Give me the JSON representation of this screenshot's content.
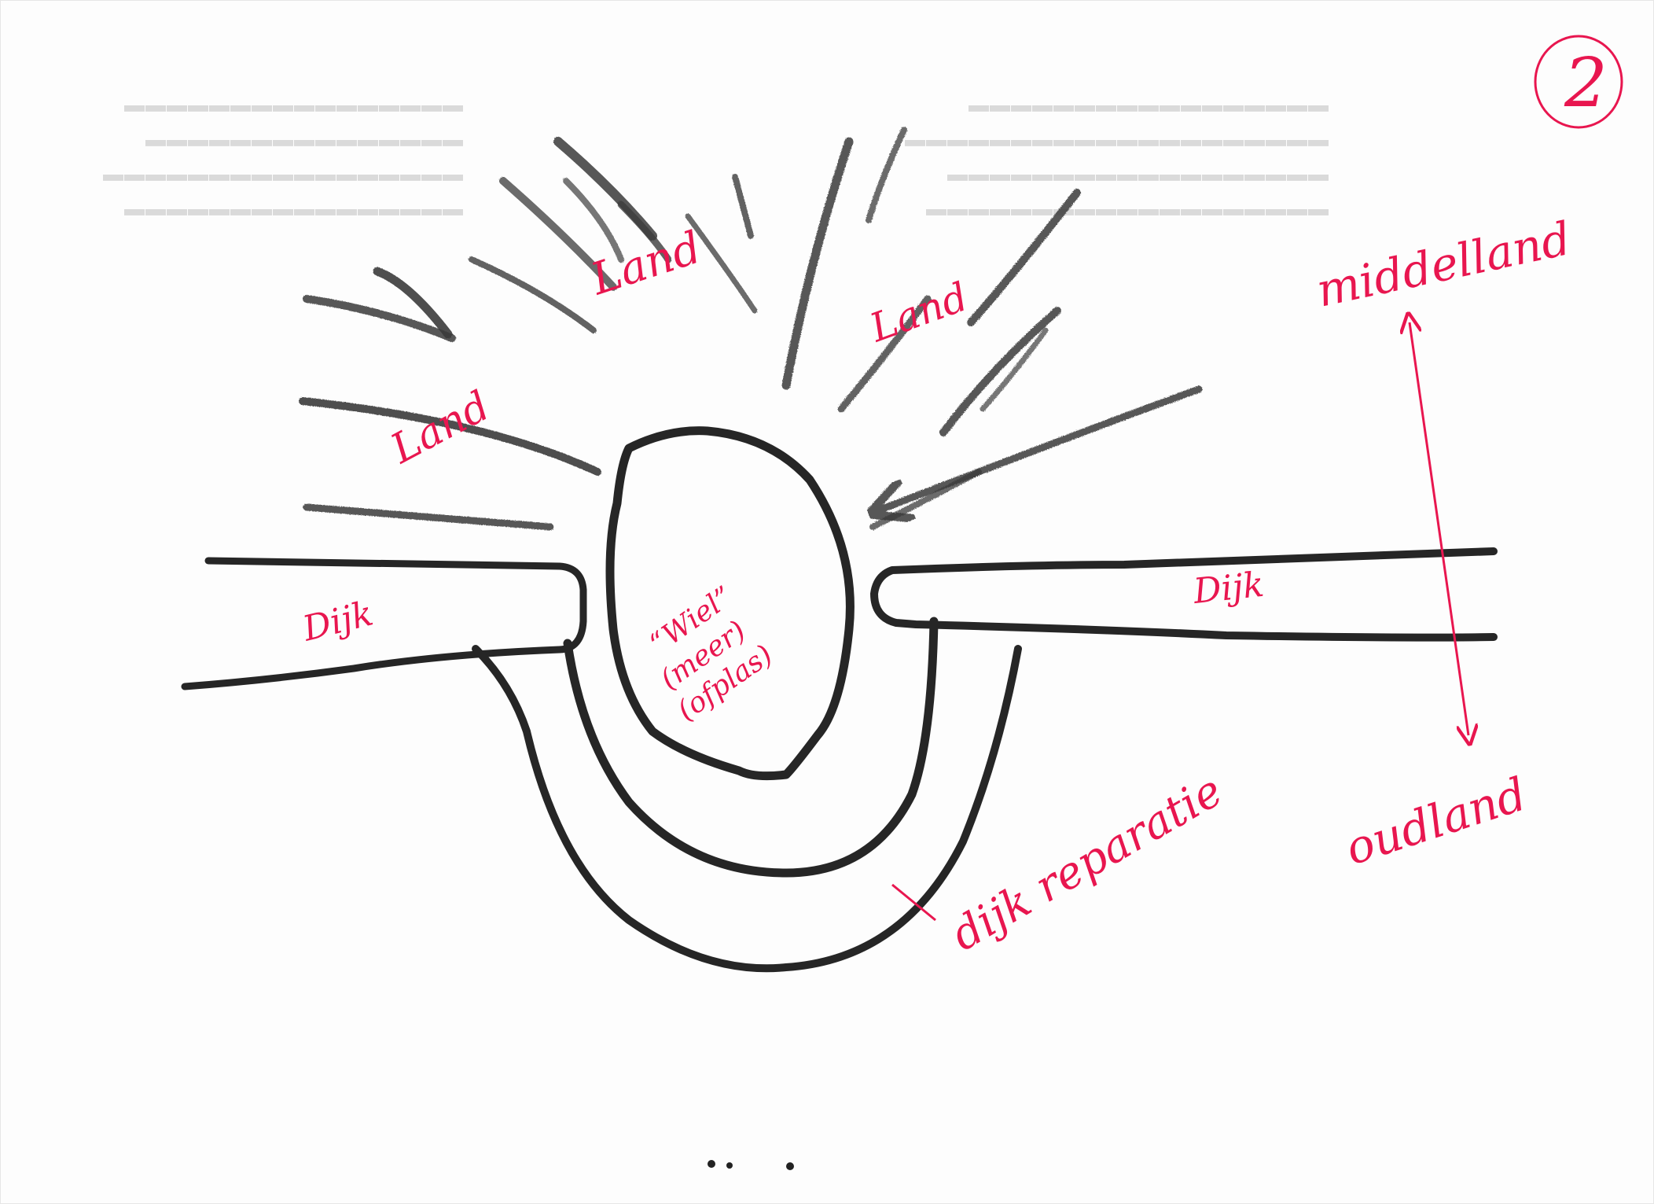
{
  "page_number": "2",
  "labels": {
    "land_top_left": "Land",
    "land_top_center": "Land",
    "land_top_right": "Land",
    "pool": "“Wiel”\n(meer)\n(ofplas)",
    "dike_left": "Dijk",
    "dike_right": "Dijk",
    "dike_repair": "dijk reparatie",
    "middle_land": "middelland",
    "old_land": "oudland"
  },
  "colors": {
    "ink": "#262626",
    "annotation": "#e8164f",
    "paper": "#fdfdfd",
    "bleed_through": "#d7d7d7"
  }
}
